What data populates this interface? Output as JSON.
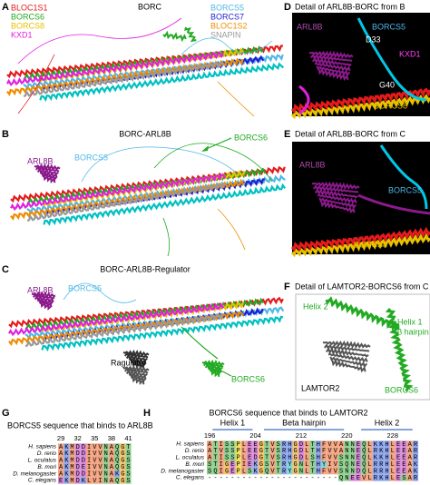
{
  "panels": {
    "a": {
      "letter": "A",
      "title": "BORC",
      "labels": [
        "BLOC1S1",
        "BORCS6",
        "BORCS8",
        "KXD1",
        "BORCS5",
        "BORCS7",
        "BLOC1S2",
        "SNAPIN"
      ]
    },
    "b": {
      "letter": "B",
      "title": "BORC-ARL8B",
      "labels": [
        "BORCS6",
        "ARL8B",
        "BORCS5"
      ]
    },
    "c": {
      "letter": "C",
      "title": "BORC-ARL8B-Regulator",
      "labels": [
        "ARL8B",
        "BORCS5",
        "Ragulator",
        "BORCS6"
      ]
    },
    "d": {
      "letter": "D",
      "title": "Detail of ARL8B-BORC from B",
      "labels": [
        "ARL8B",
        "BORCS5",
        "D33",
        "KXD1",
        "G40",
        "BORCS8"
      ]
    },
    "e": {
      "letter": "E",
      "title": "Detail of ARL8B-BORC from C",
      "labels": [
        "ARL8B",
        "BORCS5",
        "BORCS8"
      ]
    },
    "f": {
      "letter": "F",
      "title": "Detail of LAMTOR2-BORCS6 from C",
      "labels": [
        "Helix 2",
        "Helix 1",
        "β hairpin",
        "LAMTOR2",
        "BORCS6"
      ]
    },
    "g": {
      "letter": "G",
      "title": "BORCS5 sequence that binds to ARL8B",
      "positions": [
        29,
        32,
        35,
        38,
        41
      ],
      "species": [
        "H. sapiens",
        "D. rerio",
        "L. oculatus",
        "B. mori",
        "D. melanogaster",
        "C. elegans"
      ],
      "sequences": [
        "AKMDDIVVNAQGT",
        "AKMDDIVVNAQGS",
        "AKMDDIVVNAQGS",
        "AKMDEIVVNAQGS",
        "AKMDDIVVNAKGS",
        "EKMDKLVINAQGS"
      ]
    },
    "h": {
      "letter": "H",
      "title": "BORCS6 sequence that binds to LAMTOR2",
      "regions": [
        "Helix 1",
        "Beta hairpin",
        "Helix 2"
      ],
      "positions": [
        196,
        204,
        212,
        220,
        228
      ],
      "species": [
        "H. sapiens",
        "D. rerio",
        "L. oculatus",
        "B. mori",
        "D. melanogaster",
        "C. elegans"
      ],
      "sequences": [
        "ATISSPLEEGTVSRHGDLTHFVVANNEQLKKHLEEAR",
        "ATVSSPLEEGTVSRHGDLTHFVVANNEQLRKHLEEAR",
        "ATISSPLEDGTVSRHGDLSHFVVSNNEQLKKHLEEAR",
        "STIGEPIEKGSVTRYGNLTHYIVSQNEQLRRHLEEAK",
        "SQIGEPLSKGQVTRYGNLTHFVVSNNDQLRRHLEEAK",
        "-----------------------QNEEVLRKHLESAR"
      ]
    }
  }
}
